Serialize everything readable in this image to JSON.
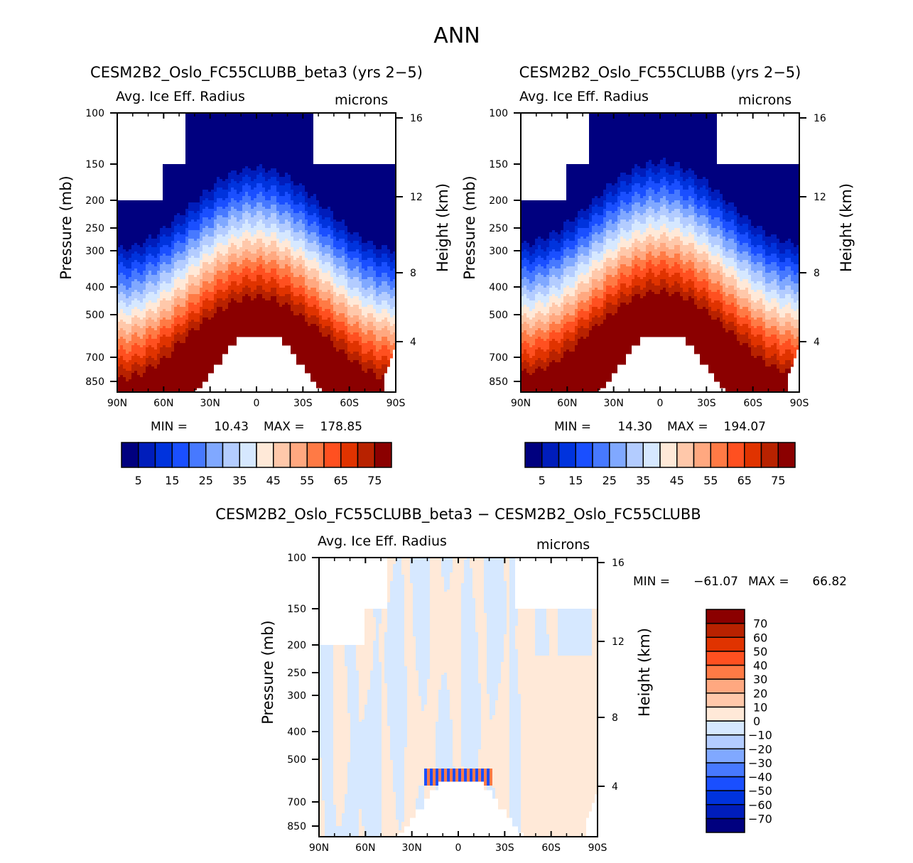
{
  "figure_title": "ANN",
  "palette_abs": [
    "#00007f",
    "#001dbb",
    "#0033dd",
    "#1a4fff",
    "#4779ff",
    "#80a8ff",
    "#b3ccff",
    "#d6e8ff",
    "#ffe9d8",
    "#ffc8aa",
    "#ffa880",
    "#ff7a45",
    "#ff5020",
    "#e03300",
    "#b82200",
    "#8b0000"
  ],
  "palette_diff": [
    "#00007f",
    "#001dbb",
    "#0033dd",
    "#1a4fff",
    "#4779ff",
    "#80a8ff",
    "#b3ccff",
    "#d6e8ff",
    "#ffe9d8",
    "#ffc8aa",
    "#ffa880",
    "#ff7a45",
    "#ff5020",
    "#e03300",
    "#b82200",
    "#8b0000"
  ],
  "chart_data": [
    {
      "type": "heatmap",
      "title": "CESM2B2_Oslo_FC55CLUBB_beta3 (yrs 2-5)",
      "subtitle_left": "Avg. Ice Eff. Radius",
      "subtitle_right": "microns",
      "xlabel": "",
      "ylabel": "Pressure (mb)",
      "ylabel_right": "Height (km)",
      "x_ticks": [
        "90N",
        "60N",
        "30N",
        "0",
        "30S",
        "60S",
        "90S"
      ],
      "y_ticks": [
        "100",
        "150",
        "200",
        "250",
        "300",
        "400",
        "500",
        "700",
        "850"
      ],
      "y_ticks_right": [
        "16",
        "12",
        "8",
        "4"
      ],
      "stats": {
        "min_label": "MIN =",
        "min": "10.43",
        "max_label": "MAX =",
        "max": "178.85"
      },
      "colorbar": {
        "orientation": "horizontal",
        "levels": [
          5,
          10,
          15,
          20,
          25,
          30,
          35,
          40,
          45,
          50,
          55,
          60,
          65,
          70,
          75
        ],
        "labels": [
          "5",
          "15",
          "25",
          "35",
          "45",
          "55",
          "65",
          "75"
        ]
      },
      "ylim": [
        1000,
        100
      ],
      "xlim": [
        90,
        -90
      ]
    },
    {
      "type": "heatmap",
      "title": "CESM2B2_Oslo_FC55CLUBB (yrs 2-5)",
      "subtitle_left": "Avg. Ice Eff. Radius",
      "subtitle_right": "microns",
      "xlabel": "",
      "ylabel": "Pressure (mb)",
      "ylabel_right": "Height (km)",
      "x_ticks": [
        "90N",
        "60N",
        "30N",
        "0",
        "30S",
        "60S",
        "90S"
      ],
      "y_ticks": [
        "100",
        "150",
        "200",
        "250",
        "300",
        "400",
        "500",
        "700",
        "850"
      ],
      "y_ticks_right": [
        "16",
        "12",
        "8",
        "4"
      ],
      "stats": {
        "min_label": "MIN =",
        "min": "14.30",
        "max_label": "MAX =",
        "max": "194.07"
      },
      "colorbar": {
        "orientation": "horizontal",
        "levels": [
          5,
          10,
          15,
          20,
          25,
          30,
          35,
          40,
          45,
          50,
          55,
          60,
          65,
          70,
          75
        ],
        "labels": [
          "5",
          "15",
          "25",
          "35",
          "45",
          "55",
          "65",
          "75"
        ]
      },
      "ylim": [
        1000,
        100
      ],
      "xlim": [
        90,
        -90
      ]
    },
    {
      "type": "heatmap",
      "title": "CESM2B2_Oslo_FC55CLUBB_beta3 - CESM2B2_Oslo_FC55CLUBB",
      "subtitle_left": "Avg. Ice Eff. Radius",
      "subtitle_right": "microns",
      "xlabel": "",
      "ylabel": "Pressure (mb)",
      "ylabel_right": "Height (km)",
      "x_ticks": [
        "90N",
        "60N",
        "30N",
        "0",
        "30S",
        "60S",
        "90S"
      ],
      "y_ticks": [
        "100",
        "150",
        "200",
        "250",
        "300",
        "400",
        "500",
        "700",
        "850"
      ],
      "y_ticks_right": [
        "16",
        "12",
        "8",
        "4"
      ],
      "stats": {
        "min_label": "MIN =",
        "min": "-61.07",
        "max_label": "MAX =",
        "max": "66.82"
      },
      "colorbar": {
        "orientation": "vertical",
        "levels": [
          -70,
          -60,
          -50,
          -40,
          -30,
          -20,
          -10,
          0,
          10,
          20,
          30,
          40,
          50,
          60,
          70
        ],
        "labels": [
          "-70",
          "-60",
          "-50",
          "-40",
          "-30",
          "-20",
          "-10",
          "0",
          "10",
          "20",
          "30",
          "40",
          "50",
          "60",
          "70"
        ]
      },
      "ylim": [
        1000,
        100
      ],
      "xlim": [
        90,
        -90
      ]
    }
  ]
}
